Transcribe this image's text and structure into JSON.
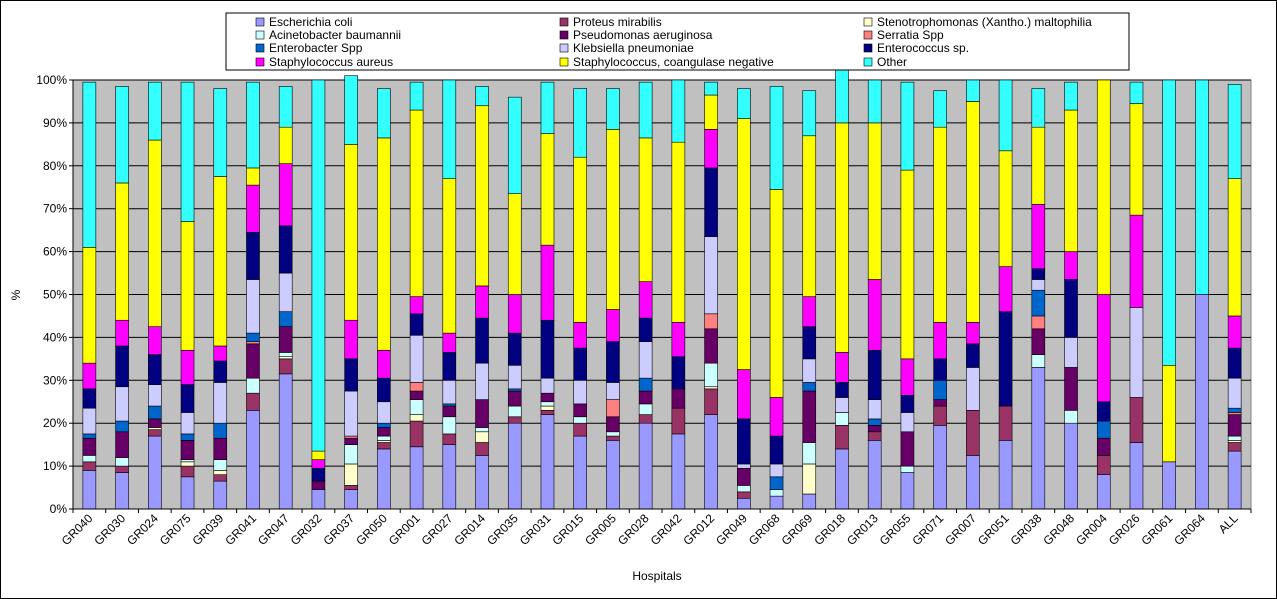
{
  "chart_data": {
    "type": "bar",
    "stacked": "percent",
    "xlabel": "Hospitals",
    "ylabel": "%",
    "ylim": [
      0,
      100
    ],
    "yticks": [
      "0%",
      "10%",
      "20%",
      "30%",
      "40%",
      "50%",
      "60%",
      "70%",
      "80%",
      "90%",
      "100%"
    ],
    "grid": true,
    "legend_position": "top",
    "plot_background": "#c0c0c0",
    "categories": [
      "GR040",
      "GR030",
      "GR024",
      "GR075",
      "GR039",
      "GR041",
      "GR047",
      "GR032",
      "GR037",
      "GR050",
      "GR001",
      "GR027",
      "GR014",
      "GR035",
      "GR031",
      "GR015",
      "GR005",
      "GR028",
      "GR042",
      "GR012",
      "GR049",
      "GR068",
      "GR069",
      "GR018",
      "GR013",
      "GR055",
      "GR071",
      "GR007",
      "GR051",
      "GR038",
      "GR048",
      "GR004",
      "GR026",
      "GR061",
      "GR064",
      "ALL"
    ],
    "series": [
      {
        "name": "Escherichia coli",
        "color": "#9999ff",
        "values": [
          9,
          8.5,
          17,
          7.5,
          6.5,
          23,
          31.5,
          4.5,
          4.5,
          14,
          14.5,
          15,
          12.5,
          20,
          22,
          17,
          16,
          20,
          17.5,
          22,
          2.5,
          3,
          3.5,
          14,
          16,
          8.5,
          19.5,
          12.5,
          16,
          33,
          20,
          8,
          15.5,
          11,
          50,
          13.5
        ]
      },
      {
        "name": "Proteus mirabilis",
        "color": "#993366",
        "values": [
          2,
          1.5,
          1.5,
          2.5,
          1.5,
          4,
          3.5,
          0,
          1,
          1.5,
          6,
          2.5,
          3,
          1.5,
          1,
          3,
          1,
          2,
          6,
          6,
          1.5,
          0,
          0,
          5.5,
          2,
          0,
          4.5,
          10.5,
          8,
          0,
          0,
          4.5,
          10.5,
          0,
          0,
          2
        ]
      },
      {
        "name": "Stenotrophomonas (Xantho.) maltophilia",
        "color": "#ffffcc",
        "values": [
          0,
          0,
          0.5,
          1,
          1,
          0,
          0.5,
          0,
          5,
          0.5,
          1.5,
          0,
          2.5,
          0,
          1,
          0,
          0,
          0,
          0,
          0.5,
          0,
          0,
          7,
          0,
          0,
          0,
          0,
          0,
          0,
          0,
          0,
          0,
          0,
          0,
          0,
          0.5
        ]
      },
      {
        "name": "Acinetobacter baumannii",
        "color": "#ccffff",
        "values": [
          1.5,
          2,
          0,
          0.5,
          2.5,
          3.5,
          1,
          0,
          4.5,
          1,
          3.5,
          4,
          1,
          2.5,
          1,
          1.5,
          1,
          2.5,
          0,
          5.5,
          1.5,
          1.5,
          5,
          3,
          0,
          1.5,
          0,
          0,
          0,
          3,
          3,
          0,
          0,
          0,
          0,
          1
        ]
      },
      {
        "name": "Pseudomonas aeruginosa",
        "color": "#660066",
        "values": [
          4,
          6,
          2,
          4.5,
          5,
          8,
          6,
          2,
          1.5,
          2,
          2,
          2.5,
          6.5,
          3.5,
          2,
          3,
          3.5,
          3,
          4.5,
          8,
          4,
          0,
          12,
          0,
          1.5,
          8,
          1.5,
          0,
          0,
          6,
          10,
          4,
          0,
          0,
          0,
          5
        ]
      },
      {
        "name": "Serratia Spp",
        "color": "#ff8080",
        "values": [
          0,
          0,
          0,
          0,
          0,
          0.5,
          0,
          0,
          0.5,
          0,
          2,
          0,
          0,
          0,
          0,
          0,
          4,
          0,
          0,
          3.5,
          0,
          0,
          0,
          0,
          0,
          0,
          0,
          0,
          0,
          3,
          0,
          0,
          0,
          0,
          0,
          0.5
        ]
      },
      {
        "name": "Enterobacter Spp",
        "color": "#0066cc",
        "values": [
          1,
          2.5,
          3,
          1.5,
          3.5,
          2,
          3.5,
          0,
          0,
          1,
          0,
          0.5,
          0,
          0.5,
          0,
          0,
          0,
          3,
          0,
          0,
          0,
          3,
          2,
          0,
          1.5,
          0,
          4.5,
          0,
          0,
          6,
          0,
          4,
          0,
          0,
          0,
          1
        ]
      },
      {
        "name": "Klebsiella pneumoniae",
        "color": "#ccccff",
        "values": [
          6,
          8,
          5,
          5,
          9.5,
          12.5,
          9,
          0,
          10.5,
          5,
          11,
          5.5,
          8.5,
          5.5,
          3.5,
          5.5,
          4,
          8.5,
          0,
          18,
          1,
          3,
          5.5,
          3.5,
          4.5,
          4.5,
          0,
          10,
          0,
          2.5,
          7,
          0,
          21,
          0,
          0,
          7
        ]
      },
      {
        "name": "Enterococcus sp.",
        "color": "#000080",
        "values": [
          4.5,
          9.5,
          7,
          6.5,
          5,
          11,
          11,
          3,
          7.5,
          5.5,
          5,
          6.5,
          10.5,
          7.5,
          13.5,
          7.5,
          9.5,
          5.5,
          7.5,
          16,
          10.5,
          6.5,
          7.5,
          3.5,
          11.5,
          4,
          5,
          5.5,
          22,
          2.5,
          13.5,
          4.5,
          0,
          0,
          0,
          7
        ]
      },
      {
        "name": "Staphylococcus aureus",
        "color": "#ff00ff",
        "values": [
          6,
          6,
          6.5,
          8,
          3.5,
          11,
          14.5,
          2,
          9,
          6.5,
          4,
          4.5,
          7.5,
          9,
          17.5,
          6,
          7.5,
          8.5,
          8,
          9,
          11.5,
          9,
          7,
          7,
          16.5,
          8.5,
          8.5,
          5,
          10.5,
          15,
          6.5,
          25,
          21.5,
          0,
          0,
          7.5
        ]
      },
      {
        "name": "Staphylococcus, coangulase negative",
        "color": "#ffff00",
        "values": [
          27,
          32,
          43.5,
          30,
          39.5,
          4,
          8.5,
          2,
          41,
          49.5,
          43.5,
          36,
          42,
          23.5,
          26,
          38.5,
          42,
          33.5,
          42,
          8,
          58.5,
          48.5,
          37.5,
          53.5,
          36.5,
          44,
          45.5,
          51.5,
          27,
          18,
          33,
          50,
          26,
          22.5,
          0,
          32
        ]
      },
      {
        "name": "Other",
        "color": "#33ffff",
        "values": [
          38.5,
          22.5,
          13.5,
          32.5,
          20.5,
          20,
          9.5,
          86.5,
          16,
          11.5,
          6.5,
          23,
          4.5,
          22.5,
          12,
          16,
          9.5,
          13,
          14.5,
          3,
          7,
          24,
          10.5,
          12.5,
          10,
          20.5,
          8.5,
          5,
          16.5,
          9,
          6.5,
          0,
          5,
          66.5,
          50,
          22
        ]
      }
    ]
  }
}
